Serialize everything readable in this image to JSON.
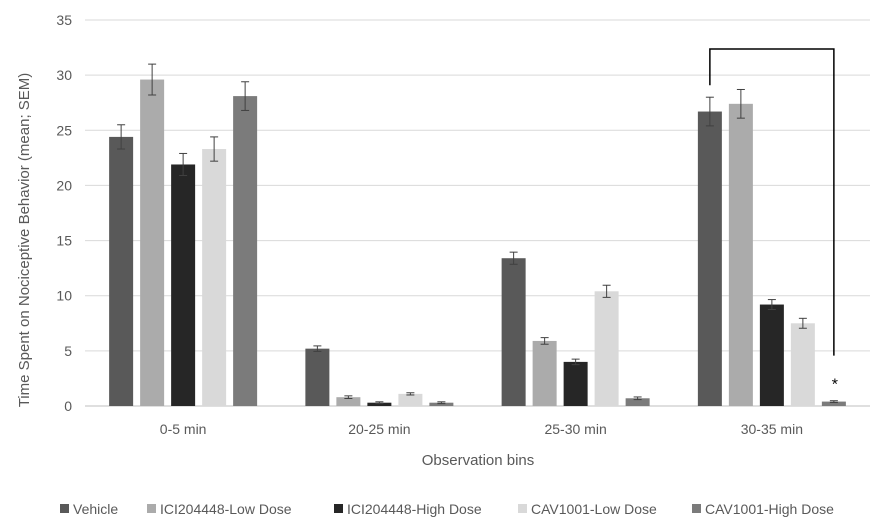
{
  "chart_data": {
    "type": "bar",
    "categories": [
      "0-5 min",
      "20-25 min",
      "25-30 min",
      "30-35 min"
    ],
    "xlabel": "Observation bins",
    "ylabel": "Time Spent on Nociceptive Behavior (mean; SEM)",
    "ylim": [
      0,
      35
    ],
    "yticks": [
      0,
      5,
      10,
      15,
      20,
      25,
      30,
      35
    ],
    "grid": true,
    "legend_position": "bottom",
    "series": [
      {
        "name": "Vehicle",
        "color": "#595959",
        "values": [
          24.4,
          5.2,
          13.4,
          26.7
        ],
        "errors": [
          1.1,
          0.25,
          0.55,
          1.3
        ]
      },
      {
        "name": "ICI204448-Low Dose",
        "color": "#ababab",
        "values": [
          29.6,
          0.8,
          5.9,
          27.4
        ],
        "errors": [
          1.4,
          0.12,
          0.3,
          1.3
        ]
      },
      {
        "name": "ICI204448-High Dose",
        "color": "#262626",
        "values": [
          21.9,
          0.3,
          4.0,
          9.2
        ],
        "errors": [
          1.0,
          0.08,
          0.25,
          0.45
        ]
      },
      {
        "name": "CAV1001-Low Dose",
        "color": "#d9d9d9",
        "values": [
          23.3,
          1.1,
          10.4,
          7.5
        ],
        "errors": [
          1.1,
          0.1,
          0.55,
          0.45
        ]
      },
      {
        "name": "CAV1001-High Dose",
        "color": "#7b7b7b",
        "values": [
          28.1,
          0.3,
          0.7,
          0.4
        ],
        "errors": [
          1.3,
          0.08,
          0.12,
          0.08
        ]
      }
    ],
    "annotations": [
      {
        "type": "significance-bracket",
        "category": "30-35 min",
        "from_series": "Vehicle",
        "to_series": "CAV1001-High Dose",
        "label": "*"
      }
    ]
  }
}
